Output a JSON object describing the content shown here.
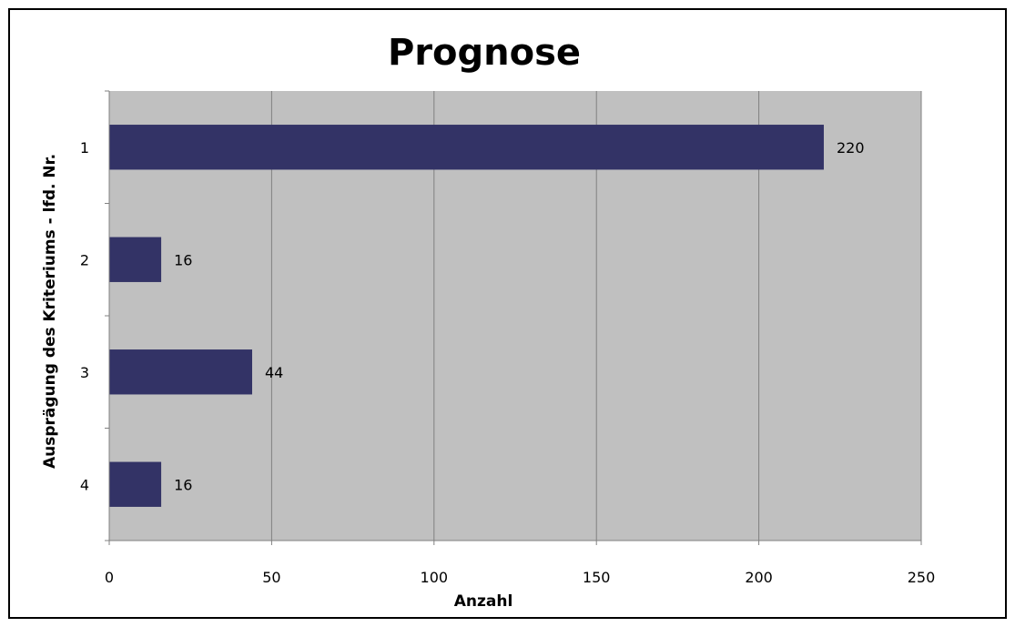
{
  "chart_data": {
    "type": "bar",
    "orientation": "horizontal",
    "title": "Prognose",
    "xlabel": "Anzahl",
    "ylabel": "Ausprägung des Kriteriums - lfd. Nr.",
    "categories": [
      "1",
      "2",
      "3",
      "4"
    ],
    "values": [
      220,
      16,
      44,
      16
    ],
    "data_labels": [
      "220",
      "16",
      "44",
      "16"
    ],
    "xlim": [
      0,
      250
    ],
    "x_ticks": [
      0,
      50,
      100,
      150,
      200,
      250
    ],
    "x_tick_labels": [
      "0",
      "50",
      "100",
      "150",
      "200",
      "250"
    ],
    "grid": true,
    "legend": "none",
    "colors": {
      "bar": "#333366",
      "plot_background": "#c0c0c0",
      "gridline": "#808080"
    }
  }
}
